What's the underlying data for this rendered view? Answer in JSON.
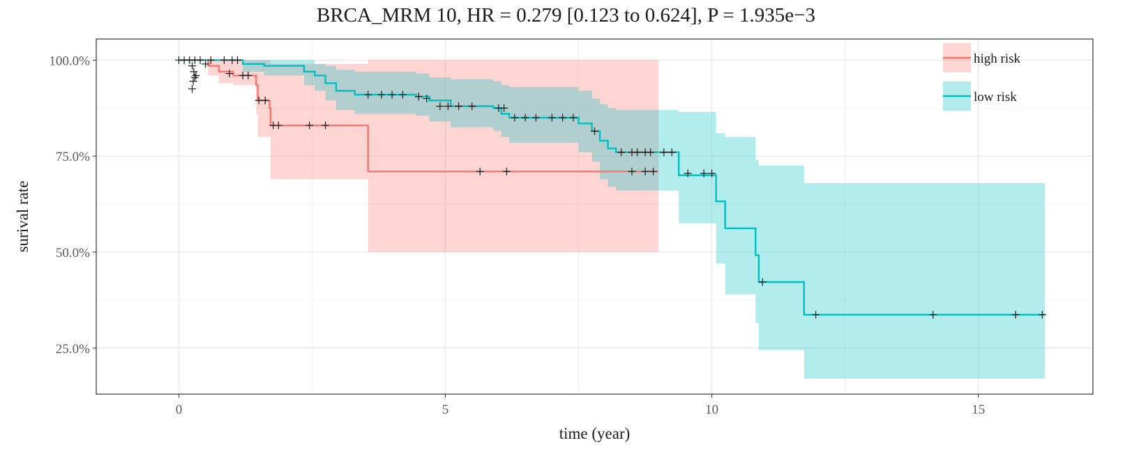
{
  "chart_data": {
    "type": "line",
    "subtype": "kaplan-meier",
    "title": "BRCA_MRM 10, HR = 0.279 [0.123 to 0.624], P = 1.935e−3",
    "xlabel": "time (year)",
    "ylabel": "surival rate",
    "xlim": [
      -1.55,
      17.15
    ],
    "ylim": [
      0.13,
      1.055
    ],
    "x_ticks": [
      0,
      5,
      10,
      15
    ],
    "x_tick_labels": [
      "0",
      "5",
      "10",
      "15"
    ],
    "y_ticks": [
      1.0,
      0.75,
      0.5,
      0.25
    ],
    "y_tick_labels": [
      "100.0%",
      "75.0%",
      "50.0%",
      "25.0%"
    ],
    "grid": true,
    "legend_position": "top-right",
    "series": [
      {
        "name": "high risk",
        "color": "#F8766D",
        "fill": "#F8766D",
        "steps": [
          [
            0,
            1.0
          ],
          [
            0.55,
            0.985
          ],
          [
            0.75,
            0.97
          ],
          [
            1.02,
            0.96
          ],
          [
            1.45,
            0.935
          ],
          [
            1.48,
            0.895
          ],
          [
            1.7,
            0.875
          ],
          [
            1.72,
            0.83
          ],
          [
            3.52,
            0.83
          ],
          [
            3.55,
            0.71
          ],
          [
            9.0,
            0.71
          ]
        ],
        "ci": [
          [
            0,
            1.0,
            1.0
          ],
          [
            0.55,
            0.96,
            1.0
          ],
          [
            0.75,
            0.94,
            1.0
          ],
          [
            1.02,
            0.935,
            1.0
          ],
          [
            1.45,
            0.86,
            1.0
          ],
          [
            1.48,
            0.8,
            1.0
          ],
          [
            1.72,
            0.69,
            0.99
          ],
          [
            3.55,
            0.5,
            1.0
          ],
          [
            9.0,
            0.5,
            1.0
          ]
        ],
        "censors": [
          [
            0.1,
            1.0
          ],
          [
            0.3,
            1.0
          ],
          [
            0.5,
            0.99
          ],
          [
            0.95,
            0.965
          ],
          [
            1.2,
            0.96
          ],
          [
            1.3,
            0.96
          ],
          [
            1.5,
            0.895
          ],
          [
            1.62,
            0.895
          ],
          [
            1.77,
            0.83
          ],
          [
            1.87,
            0.83
          ],
          [
            2.45,
            0.83
          ],
          [
            2.75,
            0.83
          ],
          [
            5.65,
            0.71
          ],
          [
            6.15,
            0.71
          ],
          [
            8.5,
            0.71
          ],
          [
            8.75,
            0.71
          ],
          [
            8.9,
            0.71
          ]
        ]
      },
      {
        "name": "low risk",
        "color": "#00BFC4",
        "fill": "#00BFC4",
        "steps": [
          [
            0,
            1.0
          ],
          [
            1.2,
            0.99
          ],
          [
            1.6,
            0.985
          ],
          [
            2.35,
            0.97
          ],
          [
            2.55,
            0.96
          ],
          [
            2.75,
            0.94
          ],
          [
            2.95,
            0.92
          ],
          [
            3.3,
            0.91
          ],
          [
            4.45,
            0.905
          ],
          [
            4.7,
            0.895
          ],
          [
            5.1,
            0.88
          ],
          [
            5.9,
            0.875
          ],
          [
            6.05,
            0.86
          ],
          [
            6.2,
            0.85
          ],
          [
            7.5,
            0.835
          ],
          [
            7.75,
            0.815
          ],
          [
            7.9,
            0.79
          ],
          [
            8.05,
            0.77
          ],
          [
            8.2,
            0.76
          ],
          [
            9.35,
            0.76
          ],
          [
            9.38,
            0.7
          ],
          [
            10.05,
            0.7
          ],
          [
            10.08,
            0.632
          ],
          [
            10.25,
            0.562
          ],
          [
            10.82,
            0.492
          ],
          [
            10.88,
            0.422
          ],
          [
            11.7,
            0.422
          ],
          [
            11.73,
            0.337
          ],
          [
            16.25,
            0.337
          ]
        ],
        "ci": [
          [
            0,
            1.0,
            1.0
          ],
          [
            1.2,
            0.97,
            1.0
          ],
          [
            1.6,
            0.96,
            1.0
          ],
          [
            2.35,
            0.935,
            1.0
          ],
          [
            2.55,
            0.92,
            0.99
          ],
          [
            2.75,
            0.895,
            0.985
          ],
          [
            2.95,
            0.87,
            0.975
          ],
          [
            3.3,
            0.86,
            0.97
          ],
          [
            4.45,
            0.855,
            0.965
          ],
          [
            4.7,
            0.84,
            0.955
          ],
          [
            5.1,
            0.825,
            0.95
          ],
          [
            5.9,
            0.815,
            0.945
          ],
          [
            6.05,
            0.8,
            0.935
          ],
          [
            6.2,
            0.785,
            0.93
          ],
          [
            7.5,
            0.76,
            0.92
          ],
          [
            7.75,
            0.735,
            0.9
          ],
          [
            7.9,
            0.69,
            0.885
          ],
          [
            8.05,
            0.67,
            0.875
          ],
          [
            8.2,
            0.66,
            0.87
          ],
          [
            9.38,
            0.575,
            0.865
          ],
          [
            10.08,
            0.47,
            0.81
          ],
          [
            10.25,
            0.39,
            0.8
          ],
          [
            10.82,
            0.315,
            0.74
          ],
          [
            10.88,
            0.245,
            0.725
          ],
          [
            11.73,
            0.17,
            0.68
          ],
          [
            16.25,
            0.17,
            0.68
          ]
        ],
        "censors": [
          [
            0,
            1.0
          ],
          [
            0.2,
            1.0
          ],
          [
            0.4,
            1.0
          ],
          [
            0.6,
            1.0
          ],
          [
            0.85,
            1.0
          ],
          [
            1.0,
            1.0
          ],
          [
            1.1,
            1.0
          ],
          [
            3.55,
            0.91
          ],
          [
            3.8,
            0.91
          ],
          [
            4.0,
            0.91
          ],
          [
            4.2,
            0.91
          ],
          [
            4.5,
            0.905
          ],
          [
            4.65,
            0.9
          ],
          [
            4.9,
            0.88
          ],
          [
            5.05,
            0.88
          ],
          [
            5.25,
            0.88
          ],
          [
            5.5,
            0.88
          ],
          [
            6.0,
            0.875
          ],
          [
            6.1,
            0.875
          ],
          [
            6.3,
            0.85
          ],
          [
            6.5,
            0.85
          ],
          [
            6.7,
            0.85
          ],
          [
            7.0,
            0.85
          ],
          [
            7.2,
            0.85
          ],
          [
            7.4,
            0.85
          ],
          [
            7.8,
            0.815
          ],
          [
            8.3,
            0.76
          ],
          [
            8.5,
            0.76
          ],
          [
            8.6,
            0.76
          ],
          [
            8.75,
            0.76
          ],
          [
            8.85,
            0.76
          ],
          [
            9.1,
            0.76
          ],
          [
            9.25,
            0.76
          ],
          [
            9.55,
            0.705
          ],
          [
            9.85,
            0.705
          ],
          [
            10.0,
            0.705
          ],
          [
            10.95,
            0.422
          ],
          [
            11.95,
            0.337
          ],
          [
            14.15,
            0.337
          ],
          [
            15.7,
            0.337
          ],
          [
            16.2,
            0.337
          ]
        ],
        "cluster_censors": [
          [
            0.25,
            0.985
          ],
          [
            0.28,
            0.97
          ],
          [
            0.3,
            0.955
          ],
          [
            0.27,
            0.945
          ],
          [
            0.32,
            0.96
          ],
          [
            0.25,
            0.925
          ]
        ]
      }
    ]
  }
}
